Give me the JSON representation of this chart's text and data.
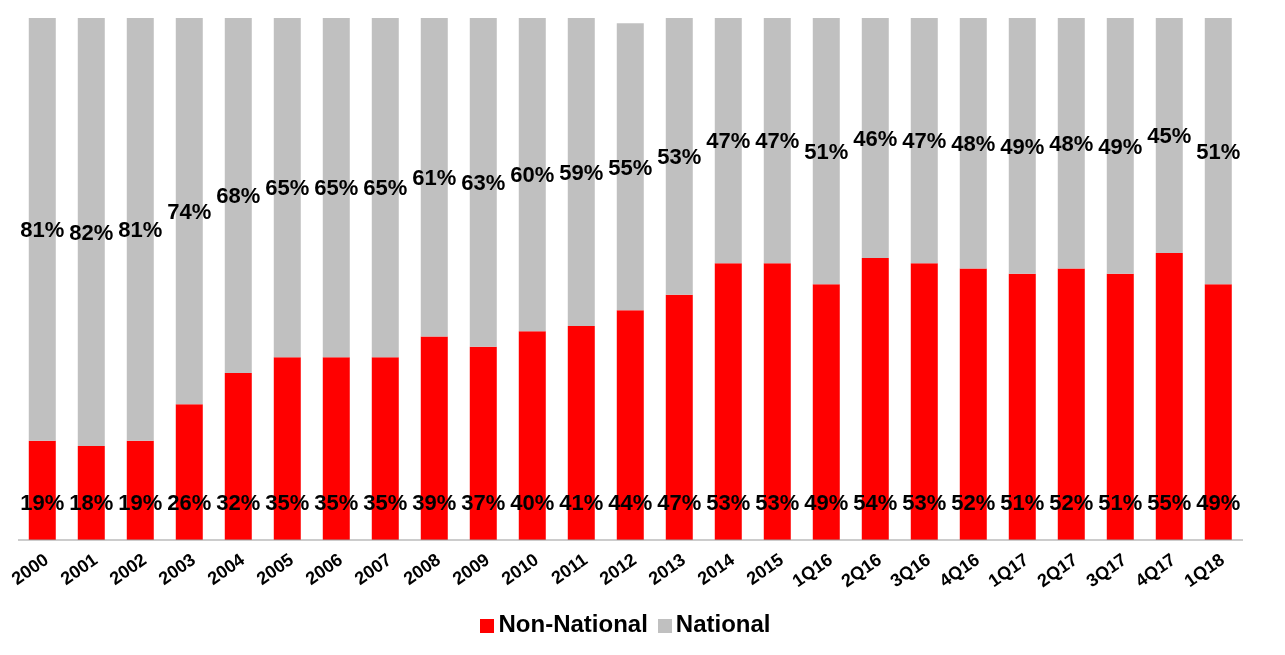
{
  "chart_data": {
    "type": "bar",
    "stacked": true,
    "categories": [
      "2000",
      "2001",
      "2002",
      "2003",
      "2004",
      "2005",
      "2006",
      "2007",
      "2008",
      "2009",
      "2010",
      "2011",
      "2012",
      "2013",
      "2014",
      "2015",
      "1Q16",
      "2Q16",
      "3Q16",
      "4Q16",
      "1Q17",
      "2Q17",
      "3Q17",
      "4Q17",
      "1Q18"
    ],
    "series": [
      {
        "name": "Non-National",
        "color": "#ff0000",
        "values": [
          19,
          18,
          19,
          26,
          32,
          35,
          35,
          35,
          39,
          37,
          40,
          41,
          44,
          47,
          53,
          53,
          49,
          54,
          53,
          52,
          51,
          52,
          51,
          55,
          49
        ],
        "value_labels": [
          "19%",
          "18%",
          "19%",
          "26%",
          "32%",
          "35%",
          "35%",
          "35%",
          "39%",
          "37%",
          "40%",
          "41%",
          "44%",
          "47%",
          "53%",
          "53%",
          "49%",
          "54%",
          "53%",
          "52%",
          "51%",
          "52%",
          "51%",
          "55%",
          "49%"
        ]
      },
      {
        "name": "National",
        "color": "#c0c0c0",
        "values": [
          81,
          82,
          81,
          74,
          68,
          65,
          65,
          65,
          61,
          63,
          60,
          59,
          55,
          53,
          47,
          47,
          51,
          46,
          47,
          48,
          49,
          48,
          49,
          45,
          51
        ],
        "value_labels": [
          "81%",
          "82%",
          "81%",
          "74%",
          "68%",
          "65%",
          "65%",
          "65%",
          "61%",
          "63%",
          "60%",
          "59%",
          "55%",
          "53%",
          "47%",
          "47%",
          "51%",
          "46%",
          "47%",
          "48%",
          "49%",
          "48%",
          "49%",
          "45%",
          "51%"
        ]
      }
    ],
    "grid": false,
    "legend": "bottom",
    "tick_labels": "x"
  }
}
